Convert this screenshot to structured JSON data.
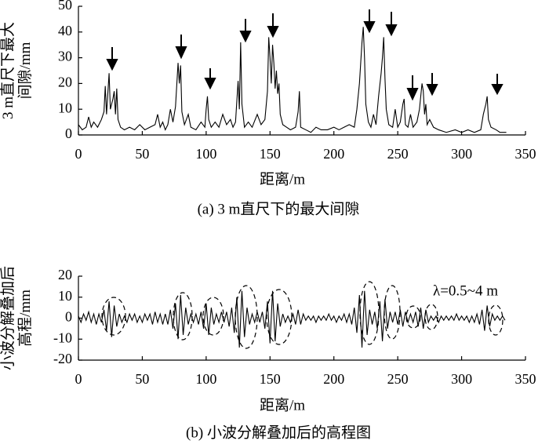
{
  "chart_data": [
    {
      "type": "line",
      "ylabel": [
        "3 m直尺下最大",
        "间隙/mm"
      ],
      "xlabel": "距离/m",
      "caption": "(a) 3 m直尺下的最大间隙",
      "xlim": [
        0,
        350
      ],
      "xticks": [
        0,
        50,
        100,
        150,
        200,
        250,
        300,
        350
      ],
      "ylim": [
        0,
        50
      ],
      "yticks": [
        0,
        10,
        20,
        30,
        40,
        50
      ],
      "series": [
        {
          "color": "#000000",
          "x": [
            0,
            3,
            6,
            8,
            10,
            12,
            15,
            18,
            20,
            21,
            22,
            24,
            25,
            27,
            28,
            29,
            30,
            31,
            33,
            36,
            40,
            44,
            48,
            52,
            56,
            60,
            62,
            64,
            66,
            68,
            70,
            72,
            74,
            76,
            78,
            79,
            80,
            81,
            83,
            86,
            88,
            92,
            96,
            99,
            100,
            101,
            102,
            104,
            107,
            110,
            113,
            116,
            119,
            121,
            123,
            125,
            126,
            127,
            128,
            130,
            133,
            136,
            140,
            143,
            146,
            148,
            149,
            150,
            151,
            152,
            153,
            154,
            155,
            156,
            157,
            158,
            160,
            163,
            166,
            170,
            172,
            173,
            174,
            178,
            182,
            186,
            190,
            195,
            200,
            204,
            208,
            212,
            216,
            218,
            220,
            222,
            223,
            224,
            225,
            227,
            229,
            231,
            233,
            235,
            237,
            238,
            239,
            240,
            241,
            243,
            246,
            248,
            250,
            252,
            254,
            255,
            256,
            258,
            260,
            262,
            265,
            267,
            268,
            269,
            270,
            271,
            272,
            273,
            275,
            278,
            282,
            288,
            295,
            300,
            305,
            310,
            315,
            317,
            319,
            320,
            321,
            323,
            327,
            330,
            335
          ],
          "values": [
            4,
            2,
            3,
            7,
            3,
            5,
            3,
            6,
            9,
            19,
            8,
            24,
            10,
            14,
            17,
            8,
            18,
            6,
            3,
            2,
            3,
            2,
            4,
            2,
            3,
            4,
            8,
            3,
            5,
            2,
            4,
            10,
            5,
            11,
            28,
            20,
            27,
            9,
            4,
            8,
            3,
            2,
            5,
            3,
            10,
            15,
            6,
            3,
            5,
            3,
            8,
            4,
            6,
            3,
            5,
            21,
            10,
            36,
            12,
            3,
            5,
            3,
            8,
            4,
            6,
            17,
            38,
            30,
            20,
            35,
            28,
            18,
            25,
            16,
            20,
            8,
            4,
            3,
            2,
            3,
            9,
            17,
            3,
            2,
            1,
            3,
            2,
            2,
            3,
            2,
            3,
            4,
            3,
            10,
            20,
            36,
            42,
            30,
            12,
            5,
            3,
            8,
            4,
            15,
            24,
            30,
            38,
            22,
            10,
            4,
            3,
            10,
            3,
            5,
            12,
            14,
            4,
            3,
            8,
            3,
            5,
            10,
            15,
            20,
            17,
            8,
            12,
            4,
            6,
            3,
            2,
            1,
            2,
            1,
            2,
            1,
            2,
            8,
            12,
            15,
            6,
            3,
            2,
            1,
            1
          ]
        }
      ]
    },
    {
      "type": "line",
      "ylabel": [
        "小波分解叠加后",
        "高程/mm"
      ],
      "xlabel": "距离/m",
      "caption": "(b) 小波分解叠加后的高程图",
      "annotation": "λ=0.5~4 m",
      "xlim": [
        0,
        350
      ],
      "xticks": [
        0,
        50,
        100,
        150,
        200,
        250,
        300,
        350
      ],
      "ylim": [
        -20,
        20
      ],
      "yticks": [
        -20,
        -10,
        0,
        10,
        20
      ],
      "series": [
        {
          "color": "#000000",
          "x": [
            0,
            2,
            4,
            6,
            8,
            10,
            12,
            14,
            16,
            18,
            20,
            22,
            24,
            26,
            28,
            30,
            32,
            34,
            36,
            38,
            40,
            42,
            44,
            46,
            48,
            50,
            52,
            54,
            56,
            58,
            60,
            62,
            64,
            66,
            68,
            70,
            72,
            74,
            76,
            78,
            80,
            82,
            84,
            86,
            88,
            90,
            92,
            94,
            96,
            98,
            100,
            102,
            104,
            106,
            108,
            110,
            112,
            114,
            116,
            118,
            120,
            122,
            124,
            126,
            128,
            130,
            132,
            134,
            136,
            138,
            140,
            142,
            144,
            146,
            148,
            150,
            152,
            154,
            156,
            158,
            160,
            162,
            164,
            166,
            168,
            170,
            172,
            174,
            176,
            178,
            180,
            182,
            184,
            186,
            188,
            190,
            192,
            194,
            196,
            198,
            200,
            202,
            204,
            206,
            208,
            210,
            212,
            214,
            216,
            218,
            220,
            222,
            224,
            226,
            228,
            230,
            232,
            234,
            236,
            238,
            240,
            242,
            244,
            246,
            248,
            250,
            252,
            254,
            256,
            258,
            260,
            262,
            264,
            266,
            268,
            270,
            272,
            274,
            276,
            278,
            280,
            282,
            284,
            286,
            288,
            290,
            292,
            294,
            296,
            298,
            300,
            302,
            304,
            306,
            308,
            310,
            312,
            314,
            316,
            318,
            320,
            322,
            324,
            326,
            328,
            330,
            332,
            334
          ],
          "values": [
            1,
            -2,
            2,
            -1,
            3,
            -2,
            2,
            -3,
            2,
            -2,
            4,
            -6,
            8,
            -9,
            6,
            -4,
            2,
            -2,
            1,
            -2,
            2,
            -1,
            2,
            -2,
            1,
            -2,
            2,
            -1,
            2,
            -3,
            3,
            -2,
            2,
            -3,
            2,
            -3,
            4,
            -5,
            7,
            -10,
            11,
            -8,
            5,
            -3,
            2,
            -2,
            2,
            -3,
            3,
            -5,
            7,
            -8,
            5,
            -3,
            2,
            -2,
            3,
            -2,
            3,
            -4,
            5,
            -7,
            10,
            -14,
            13,
            -9,
            5,
            -3,
            2,
            -2,
            3,
            -2,
            3,
            -5,
            8,
            -12,
            13,
            -11,
            7,
            -4,
            2,
            -2,
            1,
            -2,
            2,
            -3,
            4,
            -3,
            2,
            -1,
            1,
            -1,
            1,
            -2,
            1,
            -1,
            1,
            -1,
            2,
            -1,
            1,
            -2,
            1,
            -1,
            2,
            -2,
            2,
            -3,
            5,
            -7,
            11,
            -14,
            13,
            -8,
            4,
            -3,
            3,
            -5,
            8,
            -11,
            9,
            -5,
            3,
            -2,
            3,
            -3,
            4,
            -4,
            3,
            -2,
            2,
            -2,
            3,
            -4,
            5,
            -5,
            4,
            -2,
            1,
            -1,
            1,
            -2,
            1,
            -1,
            1,
            -1,
            1,
            -1,
            2,
            -1,
            1,
            -1,
            1,
            -2,
            1,
            -2,
            2,
            -3,
            4,
            -6,
            6,
            -4,
            2,
            -1,
            1,
            -1,
            1,
            -1
          ]
        }
      ]
    }
  ]
}
